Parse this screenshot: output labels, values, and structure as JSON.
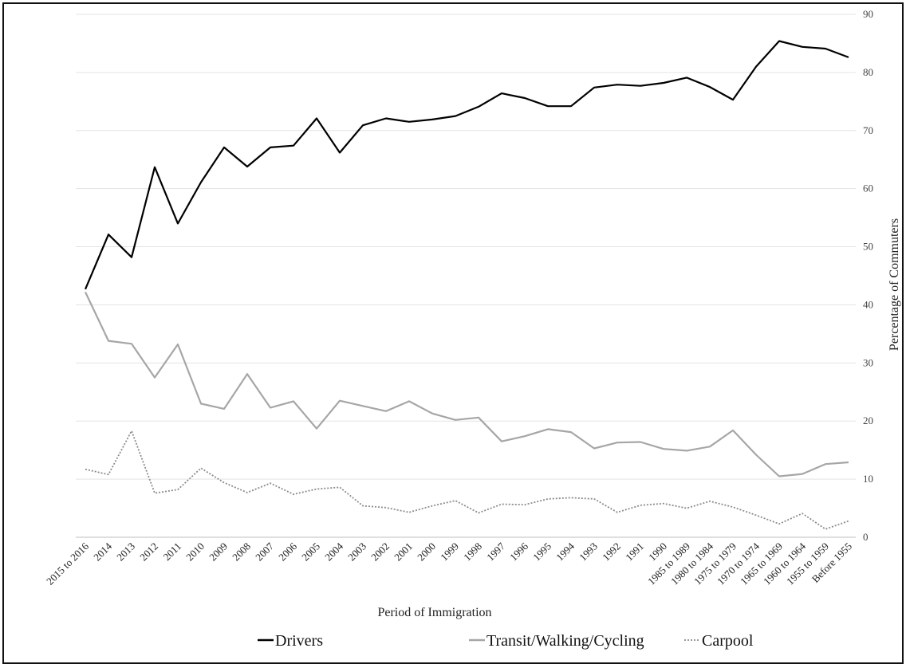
{
  "chart_data": {
    "type": "line",
    "xlabel": "Period of Immigration",
    "ylabel": "Percentage of Commuters",
    "ylim": [
      0,
      90
    ],
    "yticks": [
      0,
      10,
      20,
      30,
      40,
      50,
      60,
      70,
      80,
      90
    ],
    "grid": "horizontal",
    "legend_position": "bottom",
    "categories": [
      "2015 to 2016",
      "2014",
      "2013",
      "2012",
      "2011",
      "2010",
      "2009",
      "2008",
      "2007",
      "2006",
      "2005",
      "2004",
      "2003",
      "2002",
      "2001",
      "2000",
      "1999",
      "1998",
      "1997",
      "1996",
      "1995",
      "1994",
      "1993",
      "1992",
      "1991",
      "1990",
      "1985 to 1989",
      "1980 to 1984",
      "1975 to 1979",
      "1970 to 1974",
      "1965 to 1969",
      "1960 to 1964",
      "1955 to 1959",
      "Before 1955"
    ],
    "series": [
      {
        "name": "Drivers",
        "color": "#000000",
        "style": "solid",
        "values": [
          42.7,
          52.1,
          48.2,
          63.7,
          54.0,
          61.1,
          67.1,
          63.8,
          67.1,
          67.4,
          72.1,
          66.2,
          70.9,
          72.1,
          71.5,
          71.9,
          72.5,
          74.1,
          76.4,
          75.6,
          74.2,
          74.2,
          77.4,
          77.9,
          77.7,
          78.2,
          79.1,
          77.5,
          75.3,
          81.0,
          85.4,
          84.4,
          84.1,
          82.6
        ]
      },
      {
        "name": "Transit/Walking/Cycling",
        "color": "#a6a6a6",
        "style": "solid",
        "values": [
          42.2,
          33.8,
          33.3,
          27.5,
          33.2,
          23.0,
          22.1,
          28.1,
          22.3,
          23.4,
          18.7,
          23.5,
          22.6,
          21.7,
          23.4,
          21.3,
          20.2,
          20.6,
          16.5,
          17.4,
          18.6,
          18.1,
          15.3,
          16.3,
          16.4,
          15.2,
          14.9,
          15.6,
          18.4,
          14.2,
          10.5,
          10.9,
          12.6,
          12.9
        ]
      },
      {
        "name": "Carpool",
        "color": "#8c8c8c",
        "style": "dotted",
        "values": [
          11.7,
          10.8,
          18.3,
          7.6,
          8.2,
          11.9,
          9.4,
          7.7,
          9.3,
          7.4,
          8.3,
          8.6,
          5.4,
          5.1,
          4.3,
          5.4,
          6.3,
          4.2,
          5.7,
          5.6,
          6.6,
          6.8,
          6.6,
          4.3,
          5.5,
          5.8,
          5.0,
          6.2,
          5.2,
          3.8,
          2.3,
          4.1,
          1.4,
          2.8
        ]
      }
    ]
  }
}
